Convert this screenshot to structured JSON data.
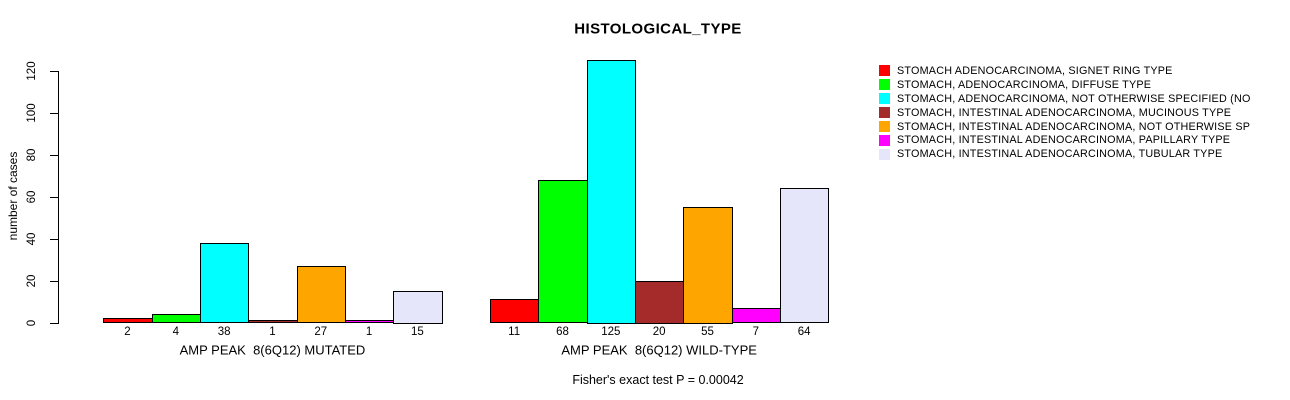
{
  "chart_data": {
    "type": "bar",
    "title": "HISTOLOGICAL_TYPE",
    "ylabel": "number of cases",
    "xlabel": "",
    "subtitle": "Fisher's exact test P = 0.00042",
    "ylim": [
      0,
      125
    ],
    "yticks": [
      0,
      20,
      40,
      60,
      80,
      100,
      120
    ],
    "grid": false,
    "legend_position": "right",
    "categories": [
      "STOMACH ADENOCARCINOMA, SIGNET RING TYPE",
      "STOMACH, ADENOCARCINOMA, DIFFUSE TYPE",
      "STOMACH, ADENOCARCINOMA, NOT OTHERWISE SPECIFIED (NO",
      "STOMACH, INTESTINAL ADENOCARCINOMA, MUCINOUS TYPE",
      "STOMACH, INTESTINAL ADENOCARCINOMA, NOT OTHERWISE SP",
      "STOMACH, INTESTINAL ADENOCARCINOMA, PAPILLARY TYPE",
      "STOMACH, INTESTINAL ADENOCARCINOMA, TUBULAR TYPE"
    ],
    "colors": [
      "#ff0000",
      "#00ff00",
      "#00ffff",
      "#a52a2a",
      "#ffa500",
      "#ff00ff",
      "#e6e6fa"
    ],
    "series": [
      {
        "name": "AMP PEAK  8(6Q12) MUTATED",
        "values": [
          2,
          4,
          38,
          1,
          27,
          1,
          15
        ]
      },
      {
        "name": "AMP PEAK  8(6Q12) WILD-TYPE",
        "values": [
          11,
          68,
          125,
          20,
          55,
          7,
          64
        ]
      }
    ]
  }
}
